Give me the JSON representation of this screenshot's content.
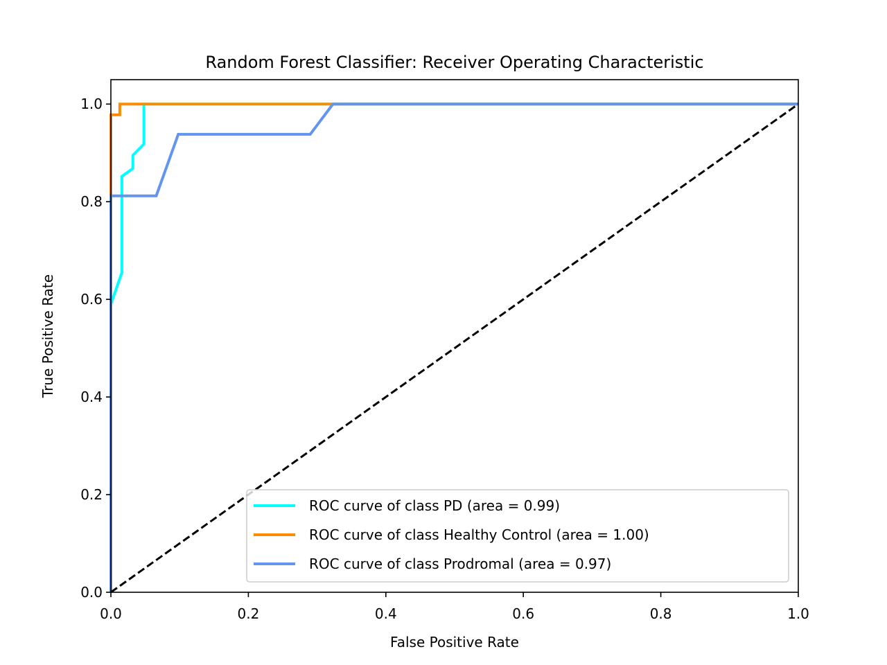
{
  "chart_data": {
    "type": "line",
    "title": "Random Forest Classifier: Receiver Operating Characteristic",
    "xlabel": "False Positive Rate",
    "ylabel": "True Positive Rate",
    "xlim": [
      0.0,
      1.0
    ],
    "ylim": [
      0.0,
      1.05
    ],
    "xticks": [
      "0.0",
      "0.2",
      "0.4",
      "0.6",
      "0.8",
      "1.0"
    ],
    "yticks": [
      "0.0",
      "0.2",
      "0.4",
      "0.6",
      "0.8",
      "1.0"
    ],
    "grid": false,
    "legend_position": "lower-right",
    "series": [
      {
        "name": "ROC curve of class PD (area = 0.99)",
        "color": "#00ffff",
        "x": [
          0.0,
          0.0,
          0.016,
          0.016,
          0.016,
          0.032,
          0.032,
          0.048,
          0.048,
          1.0
        ],
        "y": [
          0.0,
          0.59,
          0.655,
          0.852,
          0.852,
          0.868,
          0.895,
          0.918,
          1.0,
          1.0
        ]
      },
      {
        "name": "ROC curve of class Healthy Control (area = 1.00)",
        "color": "#ff8c00",
        "x": [
          0.0,
          0.0,
          0.0,
          0.013,
          0.013,
          1.0
        ],
        "y": [
          0.0,
          0.81,
          0.978,
          0.978,
          1.0,
          1.0
        ]
      },
      {
        "name": "ROC curve of class Prodromal (area = 0.97)",
        "color": "#6495ed",
        "x": [
          0.0,
          0.0,
          0.0,
          0.066,
          0.098,
          0.29,
          0.323,
          1.0
        ],
        "y": [
          0.0,
          0.062,
          0.812,
          0.812,
          0.938,
          0.938,
          1.0,
          1.0
        ]
      }
    ],
    "reference_line": {
      "x": [
        0.0,
        1.0
      ],
      "y": [
        0.0,
        1.0
      ],
      "color": "#000000",
      "style": "dashed"
    }
  }
}
